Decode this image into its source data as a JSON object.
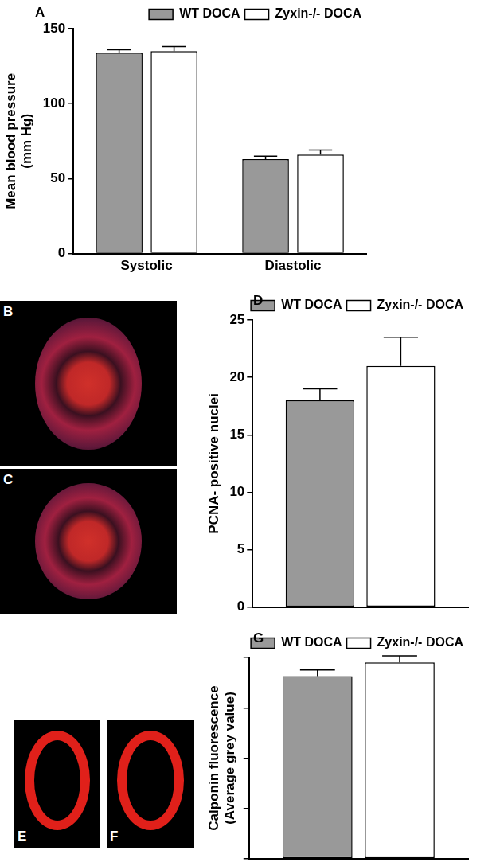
{
  "chart_data": [
    {
      "type": "bar",
      "title": "A",
      "ylabel": [
        "Mean blood pressure",
        "(mm Hg)"
      ],
      "categories": [
        "Systolic",
        "Diastolic"
      ],
      "series": [
        {
          "name": "WT DOCA",
          "color": "#999999",
          "values": [
            134,
            63
          ],
          "errors": [
            2,
            2
          ]
        },
        {
          "name": "Zyxin-/- DOCA",
          "color": "#ffffff",
          "values": [
            135,
            66
          ],
          "errors": [
            3,
            3
          ]
        }
      ],
      "ylim": [
        0,
        150
      ],
      "yticks": [
        0,
        50,
        100,
        150
      ],
      "grid": false,
      "legend": "upper right"
    },
    {
      "type": "bar",
      "title": "D",
      "ylabel": [
        "PCNA- positive nuclei"
      ],
      "categories": [
        null
      ],
      "series": [
        {
          "name": "WT DOCA",
          "color": "#999999",
          "values": [
            18
          ],
          "errors": [
            1
          ]
        },
        {
          "name": "Zyxin-/- DOCA",
          "color": "#ffffff",
          "values": [
            21
          ],
          "errors": [
            2.5
          ]
        }
      ],
      "ylim": [
        0,
        25
      ],
      "yticks": [
        0,
        5,
        10,
        15,
        20,
        25
      ],
      "grid": false,
      "legend": "upper right",
      "tick_labels": "y"
    },
    {
      "type": "bar",
      "title": "G",
      "ylabel": [
        "Calponin fluorescence",
        "(Average grey value)"
      ],
      "categories": [
        null
      ],
      "series": [
        {
          "name": "WT DOCA",
          "color": "#999999",
          "values": [
            3.63
          ],
          "errors": [
            0.12
          ]
        },
        {
          "name": "Zyxin-/- DOCA",
          "color": "#ffffff",
          "values": [
            3.9
          ],
          "errors": [
            0.13
          ]
        }
      ],
      "ylim": [
        0,
        4
      ],
      "yticks": [
        0,
        1,
        2,
        3,
        4
      ],
      "grid": false,
      "legend": "upper right",
      "tick_labels": false
    }
  ],
  "images": [
    {
      "label": "B"
    },
    {
      "label": "C"
    },
    {
      "label": "E"
    },
    {
      "label": "F"
    }
  ]
}
